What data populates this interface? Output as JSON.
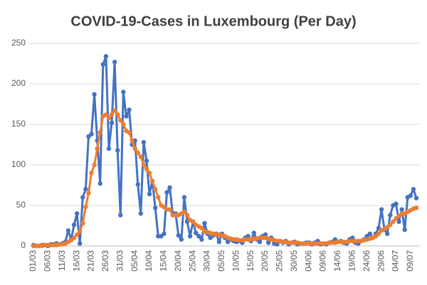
{
  "chart_data": {
    "type": "line",
    "title": "COVID-19-Cases in Luxembourg (Per Day)",
    "categories": [
      "01/03",
      null,
      null,
      null,
      null,
      "06/03",
      null,
      null,
      null,
      null,
      "11/03",
      null,
      null,
      null,
      null,
      "16/03",
      null,
      null,
      null,
      null,
      "21/03",
      null,
      null,
      null,
      null,
      "26/03",
      null,
      null,
      null,
      null,
      "31/03",
      null,
      null,
      null,
      null,
      "05/04",
      null,
      null,
      null,
      null,
      "10/04",
      null,
      null,
      null,
      null,
      "15/04",
      null,
      null,
      null,
      null,
      "20/04",
      null,
      null,
      null,
      null,
      "25/04",
      null,
      null,
      null,
      null,
      "30/04",
      null,
      null,
      null,
      null,
      "05/05",
      null,
      null,
      null,
      null,
      "10/05",
      null,
      null,
      null,
      null,
      "15/05",
      null,
      null,
      null,
      null,
      "20/05",
      null,
      null,
      null,
      null,
      "25/05",
      null,
      null,
      null,
      null,
      "30/05",
      null,
      null,
      null,
      null,
      "04/06",
      null,
      null,
      null,
      null,
      "09/06",
      null,
      null,
      null,
      null,
      "14/06",
      null,
      null,
      null,
      null,
      "19/06",
      null,
      null,
      null,
      null,
      "24/06",
      null,
      null,
      null,
      null,
      "29/06",
      null,
      null,
      null,
      null,
      "04/07",
      null,
      null,
      null,
      null,
      "09/07",
      null,
      null
    ],
    "series": [
      {
        "color": "#4472c4",
        "values": [
          1,
          0,
          0,
          1,
          1,
          0,
          2,
          2,
          3,
          2,
          3,
          5,
          19,
          8,
          26,
          40,
          3,
          60,
          70,
          135,
          138,
          187,
          130,
          77,
          224,
          234,
          120,
          152,
          227,
          118,
          38,
          190,
          160,
          168,
          125,
          130,
          76,
          40,
          128,
          105,
          64,
          80,
          47,
          12,
          12,
          15,
          66,
          72,
          40,
          40,
          13,
          8,
          60,
          30,
          12,
          30,
          16,
          12,
          8,
          28,
          15,
          10,
          13,
          15,
          5,
          15,
          10,
          5,
          8,
          6,
          5,
          6,
          4,
          10,
          12,
          6,
          16,
          8,
          5,
          12,
          14,
          4,
          10,
          3,
          2,
          6,
          4,
          6,
          2,
          4,
          5,
          2,
          3,
          3,
          4,
          4,
          2,
          4,
          6,
          2,
          3,
          2,
          4,
          5,
          8,
          5,
          6,
          4,
          3,
          8,
          10,
          4,
          3,
          6,
          8,
          12,
          15,
          10,
          15,
          22,
          45,
          20,
          15,
          38,
          50,
          52,
          30,
          45,
          20,
          60,
          62,
          70,
          59
        ]
      },
      {
        "color": "#ed7d31",
        "values": [
          0,
          0,
          0,
          0,
          1,
          1,
          1,
          1,
          1,
          2,
          2,
          3,
          5,
          7,
          10,
          14,
          18,
          28,
          48,
          65,
          90,
          100,
          120,
          140,
          160,
          162,
          158,
          162,
          167,
          162,
          155,
          150,
          142,
          140,
          130,
          120,
          115,
          110,
          100,
          95,
          90,
          80,
          70,
          60,
          50,
          48,
          45,
          45,
          38,
          38,
          38,
          40,
          42,
          38,
          32,
          30,
          26,
          24,
          22,
          18,
          17,
          16,
          15,
          14,
          14,
          13,
          12,
          10,
          9,
          8,
          8,
          7,
          7,
          8,
          8,
          8,
          9,
          9,
          10,
          10,
          10,
          9,
          8,
          7,
          6,
          6,
          5,
          5,
          4,
          4,
          4,
          4,
          3,
          3,
          3,
          3,
          3,
          3,
          3,
          3,
          3,
          3,
          4,
          4,
          4,
          5,
          5,
          5,
          5,
          6,
          6,
          6,
          6,
          6,
          7,
          8,
          9,
          10,
          12,
          15,
          19,
          21,
          23,
          26,
          30,
          34,
          37,
          40,
          40,
          42,
          44,
          46,
          47
        ]
      }
    ],
    "ylim": [
      0,
      250
    ],
    "yticks": [
      0,
      50,
      100,
      150,
      200,
      250
    ],
    "grid": true
  }
}
